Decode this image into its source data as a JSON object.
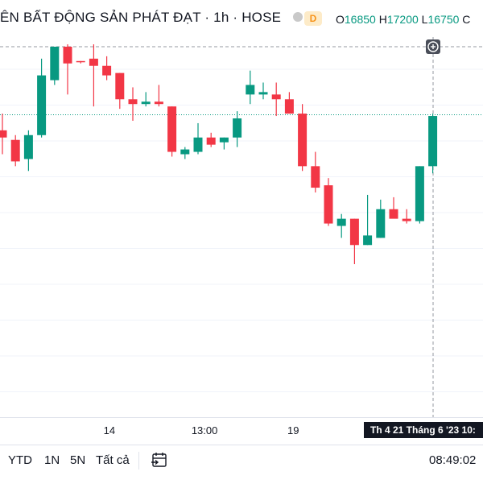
{
  "header": {
    "title": "ÊN BẤT ĐỘNG SẢN PHÁT ĐẠT · 1h · HOSE",
    "badge": "D",
    "ohlc": [
      {
        "label": "O",
        "value": "16850"
      },
      {
        "label": "H",
        "value": "17200"
      },
      {
        "label": "L",
        "value": "16750"
      },
      {
        "label": "C",
        "value": ""
      }
    ]
  },
  "chart_data": {
    "type": "candlestick",
    "up_color": "#089981",
    "down_color": "#f23645",
    "last_price_line_color": "#089981",
    "ylim": [
      15000,
      17500
    ],
    "grid": true,
    "x_tick_labels": [
      {
        "label": "14",
        "index": 8.2
      },
      {
        "label": "13:00",
        "index": 15.5
      },
      {
        "label": "19",
        "index": 22.3
      }
    ],
    "crosshair_label": "Th 4 21 Tháng 6 '23   10:",
    "last_price": 17015,
    "candles": [
      {
        "o": 16950,
        "h": 17020,
        "l": 16850,
        "c": 16920
      },
      {
        "o": 16910,
        "h": 16930,
        "l": 16800,
        "c": 16820
      },
      {
        "o": 16830,
        "h": 16950,
        "l": 16780,
        "c": 16930
      },
      {
        "o": 16930,
        "h": 17250,
        "l": 16920,
        "c": 17180
      },
      {
        "o": 17160,
        "h": 17300,
        "l": 17140,
        "c": 17300
      },
      {
        "o": 17300,
        "h": 17310,
        "l": 17100,
        "c": 17230
      },
      {
        "o": 17240,
        "h": 17240,
        "l": 17230,
        "c": 17235
      },
      {
        "o": 17250,
        "h": 17310,
        "l": 17050,
        "c": 17220
      },
      {
        "o": 17220,
        "h": 17260,
        "l": 17160,
        "c": 17180
      },
      {
        "o": 17190,
        "h": 17190,
        "l": 17040,
        "c": 17080
      },
      {
        "o": 17080,
        "h": 17130,
        "l": 16990,
        "c": 17060
      },
      {
        "o": 17060,
        "h": 17110,
        "l": 17050,
        "c": 17070
      },
      {
        "o": 17070,
        "h": 17140,
        "l": 17050,
        "c": 17060
      },
      {
        "o": 17050,
        "h": 17050,
        "l": 16840,
        "c": 16860
      },
      {
        "o": 16850,
        "h": 16880,
        "l": 16830,
        "c": 16870
      },
      {
        "o": 16860,
        "h": 16980,
        "l": 16850,
        "c": 16920
      },
      {
        "o": 16920,
        "h": 16940,
        "l": 16880,
        "c": 16890
      },
      {
        "o": 16900,
        "h": 16920,
        "l": 16870,
        "c": 16920
      },
      {
        "o": 16920,
        "h": 17030,
        "l": 16880,
        "c": 17000
      },
      {
        "o": 17100,
        "h": 17200,
        "l": 17060,
        "c": 17140
      },
      {
        "o": 17100,
        "h": 17150,
        "l": 17080,
        "c": 17110
      },
      {
        "o": 17100,
        "h": 17150,
        "l": 17010,
        "c": 17080
      },
      {
        "o": 17080,
        "h": 17110,
        "l": 17020,
        "c": 17020
      },
      {
        "o": 17020,
        "h": 17060,
        "l": 16780,
        "c": 16800
      },
      {
        "o": 16800,
        "h": 16860,
        "l": 16690,
        "c": 16710
      },
      {
        "o": 16720,
        "h": 16750,
        "l": 16550,
        "c": 16560
      },
      {
        "o": 16550,
        "h": 16600,
        "l": 16500,
        "c": 16580
      },
      {
        "o": 16580,
        "h": 16580,
        "l": 16390,
        "c": 16470
      },
      {
        "o": 16470,
        "h": 16680,
        "l": 16470,
        "c": 16510
      },
      {
        "o": 16500,
        "h": 16660,
        "l": 16500,
        "c": 16620
      },
      {
        "o": 16620,
        "h": 16670,
        "l": 16590,
        "c": 16580
      },
      {
        "o": 16580,
        "h": 16620,
        "l": 16560,
        "c": 16570
      },
      {
        "o": 16570,
        "h": 16800,
        "l": 16560,
        "c": 16800
      },
      {
        "o": 16800,
        "h": 17020,
        "l": 16770,
        "c": 17010
      }
    ]
  },
  "toolbar": {
    "ytd": "YTD",
    "one_year": "1N",
    "five_year": "5N",
    "all": "Tất cả",
    "clock": "08:49:02"
  }
}
